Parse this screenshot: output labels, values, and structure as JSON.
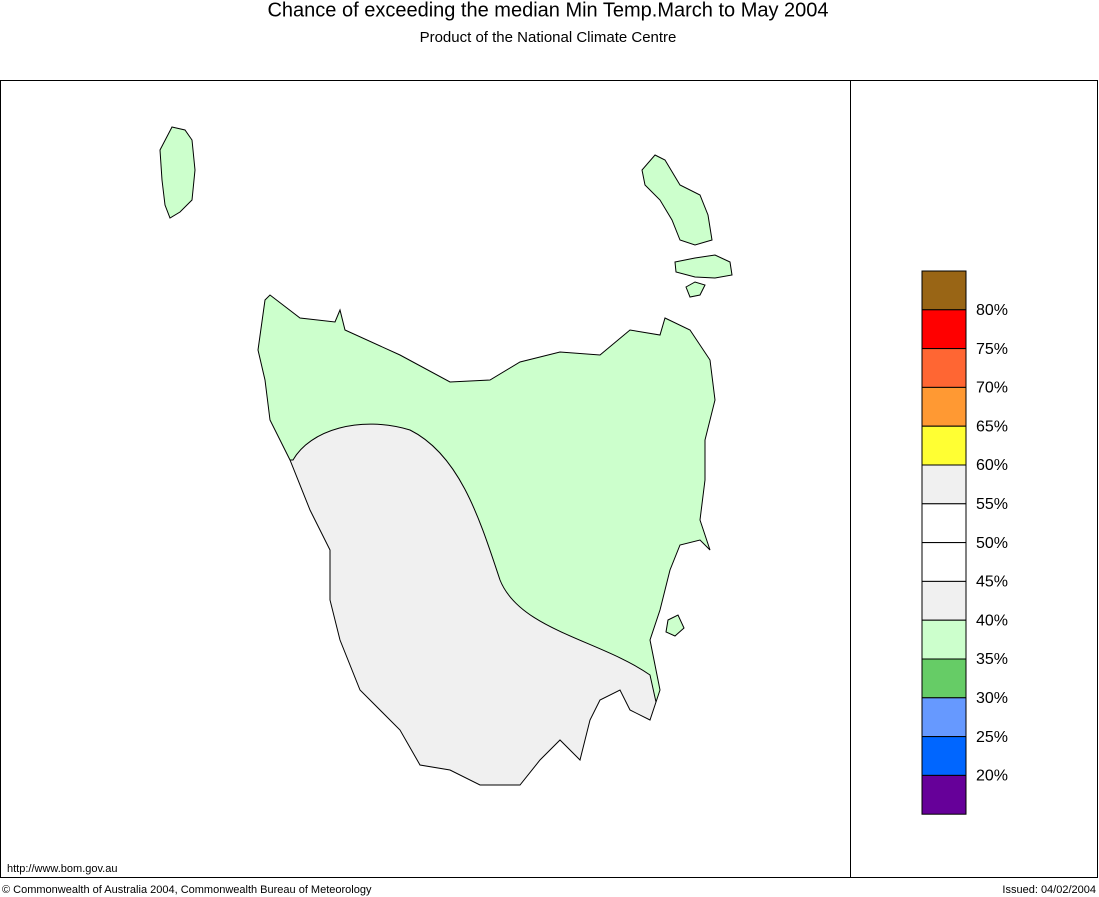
{
  "header": {
    "title": "Chance of exceeding the median Min Temp.March to May 2004",
    "subtitle": "Product of the National Climate Centre"
  },
  "legend": {
    "colors": [
      "#996515",
      "#ff0000",
      "#ff6633",
      "#ff9933",
      "#ffff33",
      "#f0f0f0",
      "#ffffff",
      "#ffffff",
      "#f0f0f0",
      "#ccffcc",
      "#66cc66",
      "#6699ff",
      "#0066ff",
      "#660099"
    ],
    "labels": [
      "80%",
      "75%",
      "70%",
      "65%",
      "60%",
      "55%",
      "50%",
      "45%",
      "40%",
      "35%",
      "30%",
      "25%",
      "20%"
    ]
  },
  "footer": {
    "url": "http://www.bom.gov.au",
    "copyright": "© Commonwealth of Australia 2004, Commonwealth Bureau of Meteorology",
    "issued": "Issued: 04/02/2004"
  }
}
